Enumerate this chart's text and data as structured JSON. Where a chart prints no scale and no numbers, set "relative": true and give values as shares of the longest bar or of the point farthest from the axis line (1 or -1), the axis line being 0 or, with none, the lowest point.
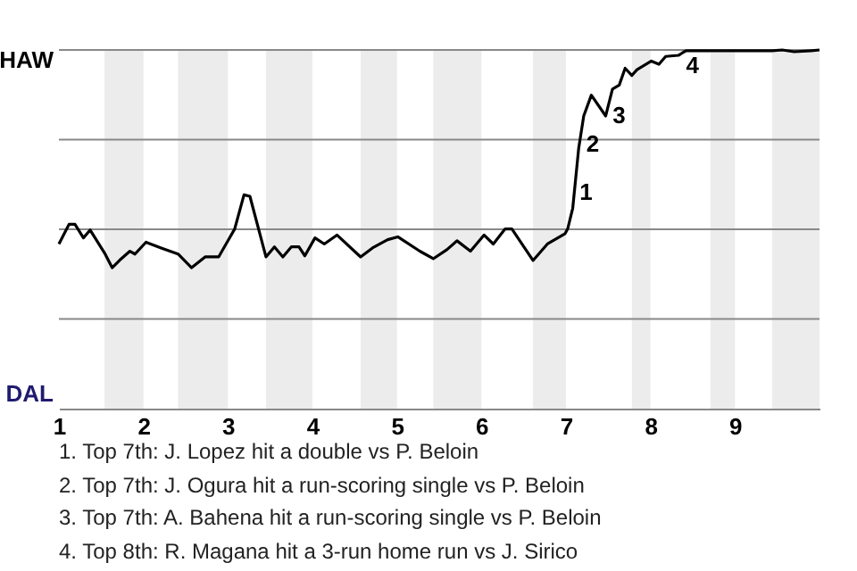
{
  "chart_data": {
    "type": "line",
    "relative": true,
    "x": [
      1,
      1.12,
      1.19,
      1.29,
      1.37,
      1.54,
      1.63,
      1.72,
      1.84,
      1.9,
      2.03,
      2.21,
      2.41,
      2.57,
      2.73,
      2.89,
      3.08,
      3.19,
      3.26,
      3.45,
      3.55,
      3.65,
      3.75,
      3.84,
      3.91,
      4.03,
      4.14,
      4.29,
      4.57,
      4.71,
      4.89,
      5.01,
      5.27,
      5.43,
      5.59,
      5.71,
      5.87,
      6.03,
      6.14,
      6.28,
      6.36,
      6.61,
      6.78,
      6.99,
      7.02,
      7.08,
      7.15,
      7.21,
      7.3,
      7.47,
      7.55,
      7.63,
      7.7,
      7.78,
      7.84,
      8.01,
      8.1,
      8.18,
      8.33,
      8.42,
      8.56,
      8.71,
      8.85,
      8.99,
      9.22,
      9.44,
      9.56,
      9.7,
      9.9,
      10
    ],
    "series": [
      {
        "color": "#000000",
        "values": [
          0.459,
          0.514,
          0.514,
          0.476,
          0.498,
          0.434,
          0.393,
          0.414,
          0.439,
          0.431,
          0.464,
          0.448,
          0.431,
          0.393,
          0.423,
          0.423,
          0.501,
          0.596,
          0.592,
          0.423,
          0.451,
          0.423,
          0.451,
          0.451,
          0.426,
          0.476,
          0.459,
          0.484,
          0.423,
          0.448,
          0.471,
          0.479,
          0.439,
          0.418,
          0.443,
          0.468,
          0.439,
          0.484,
          0.459,
          0.501,
          0.501,
          0.413,
          0.459,
          0.488,
          0.501,
          0.559,
          0.725,
          0.816,
          0.874,
          0.816,
          0.891,
          0.902,
          0.949,
          0.929,
          0.945,
          0.969,
          0.96,
          0.982,
          0.985,
          0.998,
          0.998,
          0.998,
          0.998,
          0.998,
          0.998,
          0.998,
          1,
          0.995,
          0.998,
          1
        ]
      }
    ],
    "xlim": [
      1,
      10
    ],
    "xticks": [
      1,
      2,
      3,
      4,
      5,
      6,
      7,
      8,
      9
    ],
    "ref_lines": [
      {
        "axis": "y",
        "value": 0.25,
        "color": "#888888"
      },
      {
        "axis": "y",
        "value": 0.5,
        "color": "#888888"
      },
      {
        "axis": "y",
        "value": 0.75,
        "color": "#888888"
      },
      {
        "axis": "y",
        "value": 1,
        "color": "#888888"
      }
    ],
    "bands": [
      {
        "axis": "x",
        "from": 1.54,
        "to": 2,
        "color": "#ececec"
      },
      {
        "axis": "x",
        "from": 2.41,
        "to": 3,
        "color": "#ececec"
      },
      {
        "axis": "x",
        "from": 3.45,
        "to": 4,
        "color": "#ececec"
      },
      {
        "axis": "x",
        "from": 4.57,
        "to": 5,
        "color": "#ececec"
      },
      {
        "axis": "x",
        "from": 5.43,
        "to": 6,
        "color": "#ececec"
      },
      {
        "axis": "x",
        "from": 6.61,
        "to": 7,
        "color": "#ececec"
      },
      {
        "axis": "x",
        "from": 7.78,
        "to": 8,
        "color": "#ececec"
      },
      {
        "axis": "x",
        "from": 8.71,
        "to": 9,
        "color": "#ececec"
      },
      {
        "axis": "x",
        "from": 9.44,
        "to": 10,
        "color": "#ececec"
      }
    ],
    "annotations": [
      "HAW",
      "DAL",
      {
        "text": "1",
        "x": 7.09,
        "y": 0.617
      },
      {
        "text": "2",
        "x": 7.17,
        "y": 0.751
      },
      {
        "text": "3",
        "x": 7.48,
        "y": 0.831
      },
      {
        "text": "4",
        "x": 8.35,
        "y": 0.969
      },
      "1. Top 7th: J. Lopez hit a double vs P. Beloin",
      "2. Top 7th: J. Ogura hit a run-scoring single vs P. Beloin",
      "3. Top 7th: A. Bahena hit a run-scoring single vs P. Beloin",
      "4. Top 8th: R. Magana hit a 3-run home run vs J. Sirico"
    ]
  }
}
